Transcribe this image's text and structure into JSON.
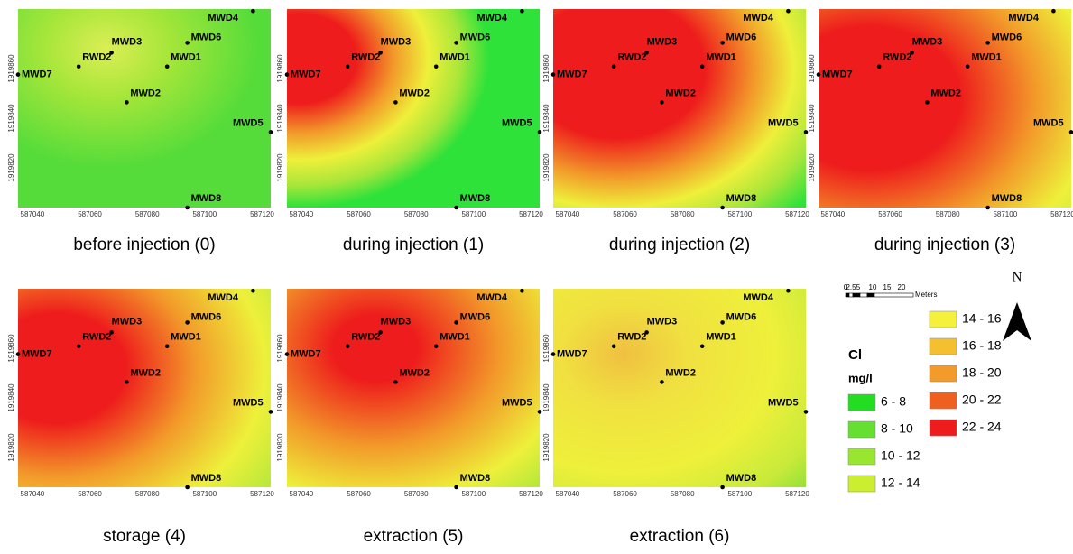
{
  "panels": [
    {
      "caption": "before injection (0)"
    },
    {
      "caption": "during injection (1)"
    },
    {
      "caption": "during injection (2)"
    },
    {
      "caption": "during injection (3)"
    },
    {
      "caption": "storage (4)"
    },
    {
      "caption": "extraction (5)"
    },
    {
      "caption": "extraction (6)"
    }
  ],
  "wells": [
    "MWD4",
    "MWD6",
    "MWD3",
    "RWD2",
    "MWD1",
    "MWD7",
    "MWD2",
    "MWD5",
    "MWD8"
  ],
  "map_axes": {
    "x_range": [
      587035,
      587123
    ],
    "x_ticks": [
      587040,
      587060,
      587080,
      587100,
      587120
    ],
    "y_range": [
      1919804,
      1919884
    ],
    "y_ticks": [
      1919820,
      1919840,
      1919860
    ]
  },
  "legend": {
    "title": "Cl",
    "unit": "mg/l",
    "classes": [
      {
        "label": "6 - 8",
        "color": "#22dd22"
      },
      {
        "label": "8 - 10",
        "color": "#66e030"
      },
      {
        "label": "10 - 12",
        "color": "#99e630"
      },
      {
        "label": "12 - 14",
        "color": "#ccee30"
      },
      {
        "label": "14 - 16",
        "color": "#f5f03a"
      },
      {
        "label": "16 - 18",
        "color": "#f5c030"
      },
      {
        "label": "18 - 20",
        "color": "#f29a2a"
      },
      {
        "label": "20 - 22",
        "color": "#ef6020"
      },
      {
        "label": "22 - 24",
        "color": "#ee1c1c"
      }
    ]
  },
  "scale_bar": {
    "labels": [
      "0",
      "2.5",
      "5",
      "10",
      "15",
      "20"
    ],
    "unit": "Meters"
  },
  "north": "N"
}
